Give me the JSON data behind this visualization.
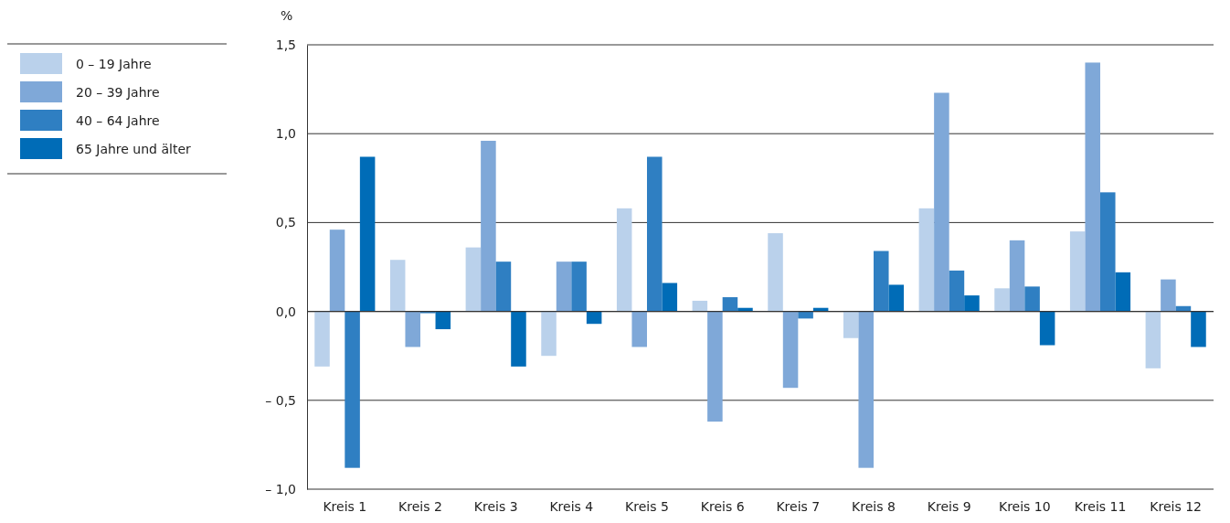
{
  "chart_data": {
    "type": "bar",
    "ylabel": "%",
    "categories": [
      "Kreis 1",
      "Kreis 2",
      "Kreis 3",
      "Kreis 4",
      "Kreis 5",
      "Kreis 6",
      "Kreis 7",
      "Kreis 8",
      "Kreis 9",
      "Kreis 10",
      "Kreis 11",
      "Kreis 12"
    ],
    "series": [
      {
        "name": "0 – 19 Jahre",
        "color": "#bad1eb",
        "values": [
          -0.31,
          0.29,
          0.36,
          -0.25,
          0.58,
          0.06,
          0.44,
          -0.15,
          0.58,
          0.13,
          0.45,
          -0.32
        ]
      },
      {
        "name": "20 – 39 Jahre",
        "color": "#7fa8d8",
        "values": [
          0.46,
          -0.2,
          0.96,
          0.28,
          -0.2,
          -0.62,
          -0.43,
          -0.88,
          1.23,
          0.4,
          1.4,
          0.18
        ]
      },
      {
        "name": "40 – 64 Jahre",
        "color": "#2f7fc2",
        "values": [
          -0.88,
          -0.01,
          0.28,
          0.28,
          0.87,
          0.08,
          -0.04,
          0.34,
          0.23,
          0.14,
          0.67,
          0.03
        ]
      },
      {
        "name": "65 Jahre und älter",
        "color": "#006cb7",
        "values": [
          0.87,
          -0.1,
          -0.31,
          -0.07,
          0.16,
          0.02,
          0.02,
          0.15,
          0.09,
          -0.19,
          0.22,
          -0.2
        ]
      }
    ],
    "ylim": [
      -1,
      1.5
    ],
    "yticks": [
      {
        "value": -1,
        "label": "– 1,0"
      },
      {
        "value": -0.5,
        "label": "– 0,5"
      },
      {
        "value": 0,
        "label": "0,0"
      },
      {
        "value": 0.5,
        "label": "0,5"
      },
      {
        "value": 1,
        "label": "1,0"
      },
      {
        "value": 1.5,
        "label": "1,5"
      }
    ],
    "grid": "y",
    "legend": "top left"
  }
}
